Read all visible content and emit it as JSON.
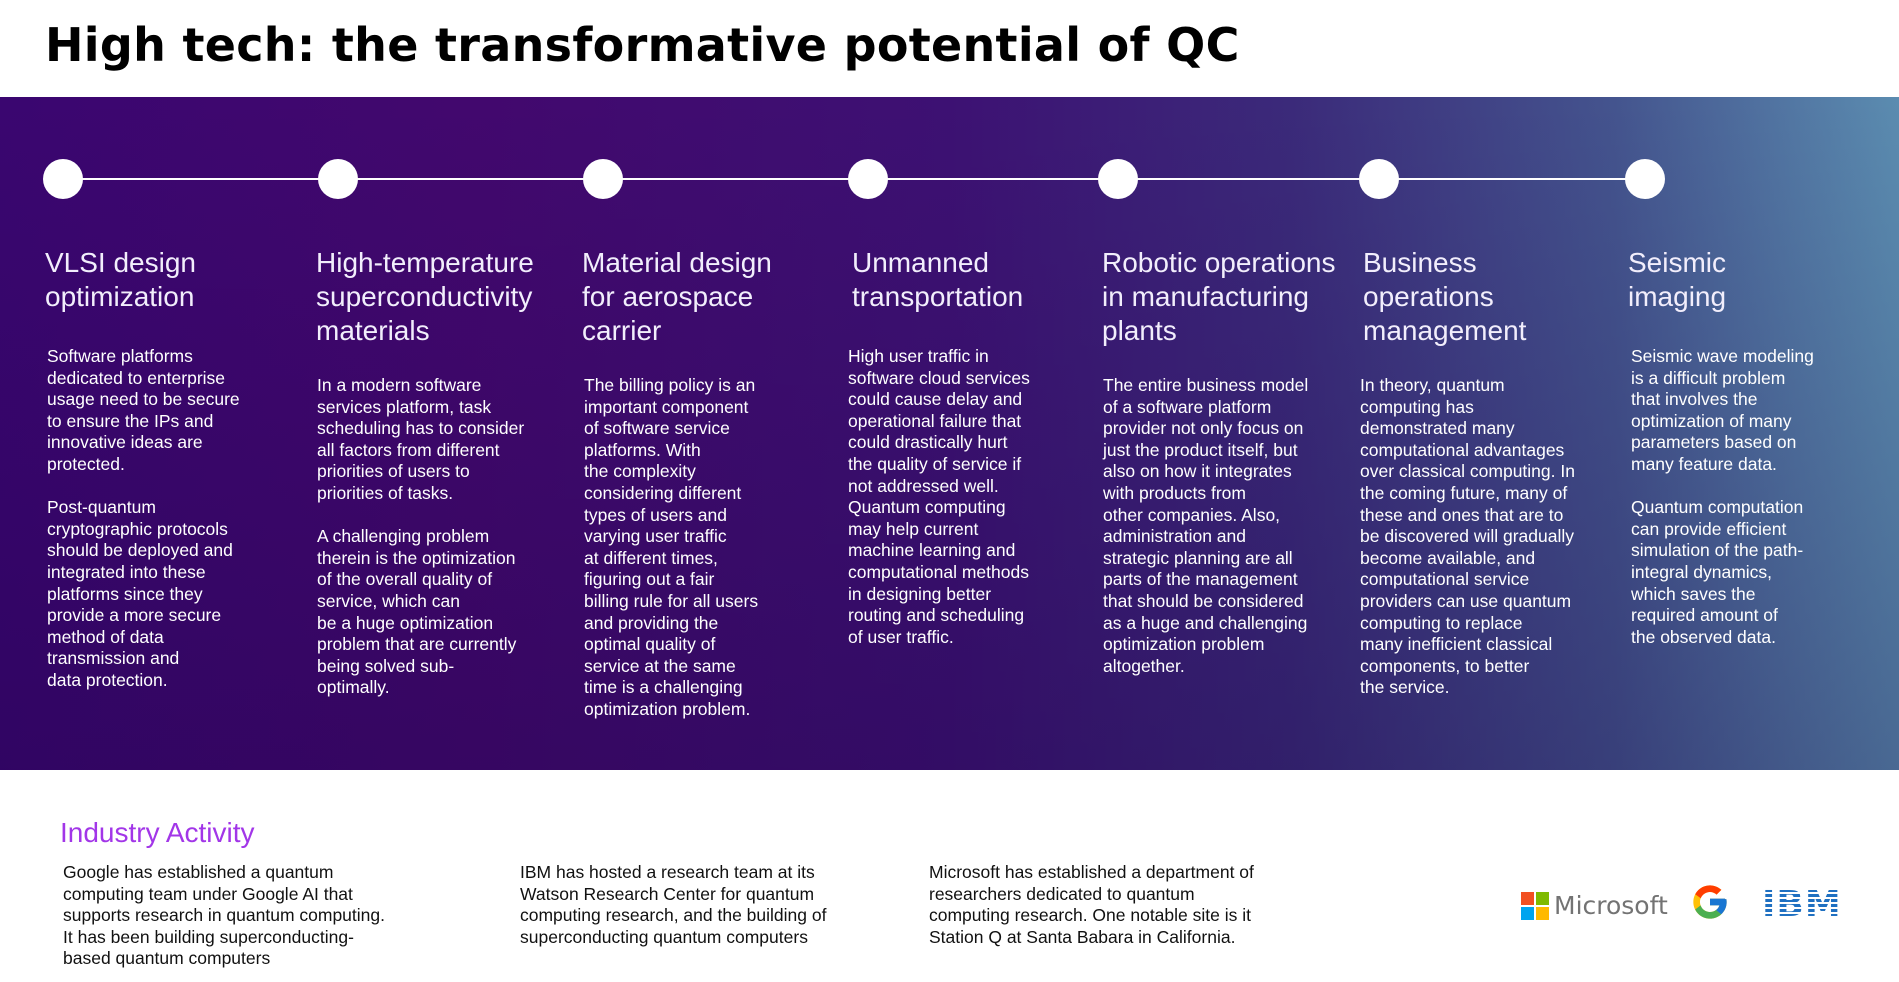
{
  "title": "High tech: the transformative potential of QC",
  "columns": [
    {
      "heading": "VLSI design\noptimization",
      "body": "Software platforms\ndedicated to enterprise\nusage need to be secure\nto ensure the IPs and\ninnovative ideas are\nprotected.\n\nPost-quantum\ncryptographic protocols\nshould be deployed and\nintegrated into these\nplatforms since they\nprovide a more secure\nmethod of data\ntransmission and\ndata protection."
    },
    {
      "heading": "High-temperature\nsuperconductivity\nmaterials",
      "body": "In a modern software\nservices platform, task\nscheduling has to consider\nall factors from different\npriorities of users to\npriorities of tasks.\n\nA challenging problem\ntherein is the optimization\nof the overall quality of\nservice, which can\nbe a huge optimization\nproblem that are currently\nbeing solved sub-\noptimally."
    },
    {
      "heading": "Material design\nfor aerospace\ncarrier",
      "body": "The billing policy is an\nimportant component\nof software service\nplatforms. With\nthe complexity\nconsidering different\ntypes of users and\nvarying user traffic\nat different times,\nfiguring out a fair\nbilling rule for all users\nand providing the\noptimal quality of\nservice at the same\ntime is a challenging\noptimization problem."
    },
    {
      "heading": "Unmanned\ntransportation",
      "body": "High user traffic in\nsoftware cloud services\ncould cause delay and\noperational failure that\ncould drastically hurt\nthe quality of service if\nnot addressed well.\nQuantum computing\nmay help current\nmachine learning and\ncomputational methods\nin designing better\nrouting and scheduling\nof user traffic."
    },
    {
      "heading": "Robotic operations\nin manufacturing\nplants",
      "body": "The entire business model\nof a software platform\nprovider not only focus on\njust the product itself, but\nalso on how it integrates\nwith products from\nother companies. Also,\nadministration and\nstrategic planning are all\nparts of the management\nthat should be considered\nas a huge and challenging\noptimization problem\naltogether."
    },
    {
      "heading": "Business\noperations\nmanagement",
      "body": "In theory, quantum\ncomputing has\ndemonstrated many\ncomputational advantages\nover classical computing. In\nthe coming future, many of\nthese and ones that are to\nbe discovered will gradually\nbecome available, and\ncomputational service\nproviders can use quantum\ncomputing to replace\nmany inefficient classical\ncomponents, to better\nthe service."
    },
    {
      "heading": "Seismic\nimaging",
      "body": "Seismic wave modeling\nis a difficult problem\nthat involves the\noptimization of many\nparameters based on\nmany feature data.\n\nQuantum computation\ncan provide efficient\nsimulation of the path-\nintegral dynamics,\nwhich saves the\nrequired amount of\nthe observed data."
    }
  ],
  "industry": {
    "title": "Industry Activity",
    "items": [
      "Google has established a quantum\ncomputing team under Google AI that\nsupports research in quantum computing.\nIt has been building superconducting-\nbased quantum computers",
      "IBM has hosted a research team at its\nWatson Research Center for quantum\ncomputing research, and the building of\nsuperconducting quantum computers",
      "Microsoft has established a department of\nresearchers dedicated to quantum\ncomputing research. One notable site is it\nStation Q at Santa Babara in California."
    ]
  },
  "logos": {
    "microsoft": "Microsoft",
    "google": "G",
    "ibm": "IBM"
  },
  "colors": {
    "accent": "#a236e8",
    "band_start": "#3a0670",
    "band_end": "#5b8cb0",
    "ibm_blue": "#1f70c1"
  }
}
